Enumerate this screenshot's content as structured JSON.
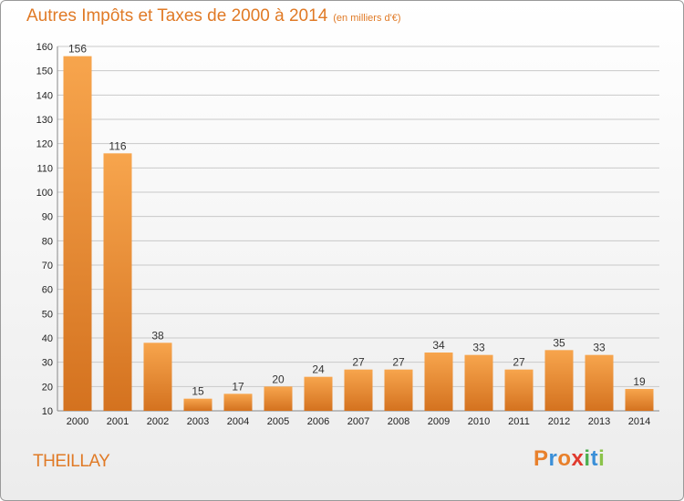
{
  "header": {
    "title": "Autres Impôts et Taxes de 2000 à 2014",
    "unit": "(en milliers d'€)"
  },
  "footer": {
    "city": "THEILLAY",
    "logo": {
      "letters": [
        "P",
        "r",
        "o",
        "x",
        "i",
        "t",
        "i"
      ],
      "colors": [
        "#e8802b",
        "#3a8fd8",
        "#e8802b",
        "#e03a2e",
        "#4caf50",
        "#3a8fd8",
        "#8bc34a"
      ]
    }
  },
  "colors": {
    "bar_light": "#f7a54d",
    "bar_dark": "#d4721f",
    "accent": "#e07a26",
    "grid": "#c9c9c9"
  },
  "chart_data": {
    "type": "bar",
    "title": "Autres Impôts et Taxes de 2000 à 2014",
    "subtitle": "(en milliers d'€)",
    "categories": [
      "2000",
      "2001",
      "2002",
      "2003",
      "2004",
      "2005",
      "2006",
      "2007",
      "2008",
      "2009",
      "2010",
      "2011",
      "2012",
      "2013",
      "2014"
    ],
    "values": [
      156,
      116,
      38,
      15,
      17,
      20,
      24,
      27,
      27,
      34,
      33,
      27,
      35,
      33,
      19
    ],
    "ylim": [
      10,
      160
    ],
    "yticks": [
      10,
      20,
      30,
      40,
      50,
      60,
      70,
      80,
      90,
      100,
      110,
      120,
      130,
      140,
      150,
      160
    ],
    "grid": true
  }
}
